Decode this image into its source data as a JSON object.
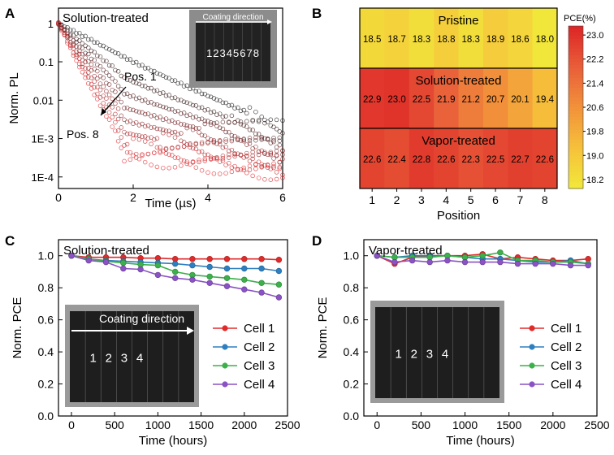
{
  "panels": {
    "a_letter": "A",
    "b_letter": "B",
    "c_letter": "C",
    "d_letter": "D"
  },
  "chart_data": [
    {
      "id": "A",
      "type": "scatter",
      "title": "Solution-treated",
      "xlabel": "Time (µs)",
      "ylabel": "Norm. PL",
      "yscale": "log",
      "xlim": [
        0,
        6
      ],
      "ylim": [
        5e-05,
        2.5
      ],
      "xticks": [
        "0",
        "2",
        "4",
        "6"
      ],
      "yticks": [
        "1",
        "0.1",
        "0.01",
        "1E-3",
        "1E-4"
      ],
      "series": [
        {
          "name": "Pos. 1",
          "values": [
            [
              0,
              1
            ],
            [
              1,
              0.32
            ],
            [
              2,
              0.1
            ],
            [
              3,
              0.035
            ],
            [
              4,
              0.013
            ],
            [
              5,
              0.005
            ],
            [
              6,
              0.002
            ]
          ]
        },
        {
          "name": "Pos. 8",
          "values": [
            [
              0,
              1
            ],
            [
              0.5,
              0.095
            ],
            [
              1,
              0.012
            ],
            [
              1.5,
              0.0017
            ],
            [
              1.75,
              0.00035
            ],
            [
              6,
              0.00012
            ]
          ]
        }
      ],
      "annotations": [
        "Pos. 1",
        "Pos. 8"
      ],
      "inset": {
        "header": "Coating direction",
        "positions": "12345678"
      },
      "colors": {
        "early": "#1a1a1a",
        "late": "#e3262a"
      }
    },
    {
      "id": "B",
      "type": "heatmap",
      "xlabel": "Position",
      "categories": [
        "1",
        "2",
        "3",
        "4",
        "5",
        "6",
        "7",
        "8"
      ],
      "rows": [
        {
          "name": "Pristine",
          "values": [
            18.5,
            18.7,
            18.3,
            18.8,
            18.3,
            18.9,
            18.6,
            18.0
          ]
        },
        {
          "name": "Solution-treated",
          "values": [
            22.9,
            23.0,
            22.5,
            21.9,
            21.2,
            20.7,
            20.1,
            19.4
          ]
        },
        {
          "name": "Vapor-treated",
          "values": [
            22.6,
            22.4,
            22.8,
            22.6,
            22.3,
            22.5,
            22.7,
            22.6
          ]
        }
      ],
      "colorbar": {
        "label": "PCE(%)",
        "ticks": [
          "23.0",
          "22.2",
          "21.4",
          "20.6",
          "19.8",
          "19.0",
          "18.2"
        ],
        "range": [
          17.9,
          23.3
        ],
        "color_low": "#f1ea3a",
        "color_high": "#dd2626"
      }
    },
    {
      "id": "C",
      "type": "line",
      "title": "Solution-treated",
      "xlabel": "Time (hours)",
      "ylabel": "Norm. PCE",
      "xlim": [
        -150,
        2500
      ],
      "ylim": [
        0,
        1.1
      ],
      "xticks": [
        "0",
        "500",
        "1000",
        "1500",
        "2000",
        "2500"
      ],
      "yticks": [
        "0.0",
        "0.2",
        "0.4",
        "0.6",
        "0.8",
        "1.0"
      ],
      "x": [
        0,
        200,
        400,
        600,
        800,
        1000,
        1200,
        1400,
        1600,
        1800,
        2000,
        2200,
        2400
      ],
      "series": [
        {
          "name": "Cell 1",
          "color": "#e02b2b",
          "values": [
            1.0,
            0.99,
            0.99,
            0.99,
            0.985,
            0.985,
            0.98,
            0.98,
            0.98,
            0.98,
            0.98,
            0.98,
            0.975
          ]
        },
        {
          "name": "Cell 2",
          "color": "#2e7fbf",
          "values": [
            1.0,
            0.98,
            0.97,
            0.965,
            0.96,
            0.955,
            0.95,
            0.94,
            0.93,
            0.92,
            0.92,
            0.92,
            0.905
          ]
        },
        {
          "name": "Cell 3",
          "color": "#3cb04a",
          "values": [
            1.0,
            0.98,
            0.965,
            0.955,
            0.945,
            0.94,
            0.9,
            0.88,
            0.87,
            0.86,
            0.85,
            0.83,
            0.82
          ]
        },
        {
          "name": "Cell 4",
          "color": "#8a52c4",
          "values": [
            1.0,
            0.97,
            0.96,
            0.92,
            0.915,
            0.88,
            0.86,
            0.85,
            0.83,
            0.81,
            0.79,
            0.77,
            0.74
          ]
        }
      ],
      "inset": {
        "header": "Coating direction",
        "cells": [
          "1",
          "2",
          "3",
          "4"
        ]
      }
    },
    {
      "id": "D",
      "type": "line",
      "title": "Vapor-treated",
      "xlabel": "Time (hours)",
      "ylabel": "Norm. PCE",
      "xlim": [
        -150,
        2500
      ],
      "ylim": [
        0,
        1.1
      ],
      "xticks": [
        "0",
        "500",
        "1000",
        "1500",
        "2000",
        "2500"
      ],
      "yticks": [
        "0.0",
        "0.2",
        "0.4",
        "0.6",
        "0.8",
        "1.0"
      ],
      "x": [
        0,
        200,
        400,
        600,
        800,
        1000,
        1200,
        1400,
        1600,
        1800,
        2000,
        2200,
        2400
      ],
      "series": [
        {
          "name": "Cell 1",
          "color": "#e02b2b",
          "values": [
            1.0,
            0.95,
            0.99,
            1.0,
            1.0,
            1.0,
            1.01,
            0.98,
            0.99,
            0.98,
            0.97,
            0.97,
            0.98
          ]
        },
        {
          "name": "Cell 2",
          "color": "#2e7fbf",
          "values": [
            1.0,
            0.99,
            1.0,
            1.0,
            1.0,
            0.99,
            0.98,
            0.98,
            0.97,
            0.96,
            0.96,
            0.97,
            0.95
          ]
        },
        {
          "name": "Cell 3",
          "color": "#3cb04a",
          "values": [
            1.0,
            0.99,
            0.99,
            0.99,
            1.0,
            0.99,
            1.0,
            1.02,
            0.97,
            0.97,
            0.96,
            0.96,
            0.95
          ]
        },
        {
          "name": "Cell 4",
          "color": "#8a52c4",
          "values": [
            1.0,
            0.96,
            0.97,
            0.96,
            0.97,
            0.96,
            0.96,
            0.96,
            0.95,
            0.95,
            0.95,
            0.94,
            0.94
          ]
        }
      ],
      "inset": {
        "cells": [
          "1",
          "2",
          "3",
          "4"
        ]
      }
    }
  ]
}
